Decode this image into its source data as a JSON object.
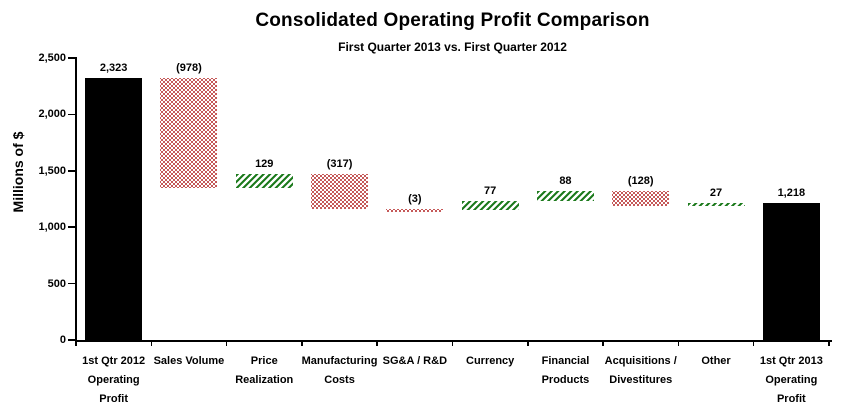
{
  "chart_data": {
    "type": "bar",
    "subtype": "waterfall",
    "title": "Consolidated Operating Profit Comparison",
    "subtitle": "First Quarter 2013 vs. First Quarter 2012",
    "ylabel": "Millions of $",
    "ylim": [
      0,
      2500
    ],
    "grid": false,
    "legend": false,
    "yticks": [
      {
        "value": 0,
        "label": "0"
      },
      {
        "value": 500,
        "label": "500"
      },
      {
        "value": 1000,
        "label": "1,000"
      },
      {
        "value": 1500,
        "label": "1,500"
      },
      {
        "value": 2000,
        "label": "2,000"
      },
      {
        "value": 2500,
        "label": "2,500"
      }
    ],
    "colors": {
      "total": "#000000",
      "increase": "#1e7b1e",
      "decrease": "#b22222",
      "background": "#ffffff"
    },
    "steps": [
      {
        "category": "1st Qtr 2012 Operating Profit",
        "category_lines": [
          "1st Qtr 2012",
          "Operating",
          "Profit"
        ],
        "value": 2323,
        "display": "2,323",
        "kind": "total",
        "pattern": "solid-black",
        "start": 0,
        "end": 2323
      },
      {
        "category": "Sales Volume",
        "category_lines": [
          "Sales Volume"
        ],
        "value": -978,
        "display": "(978)",
        "kind": "decrease",
        "pattern": "red-dots",
        "start": 2323,
        "end": 1345
      },
      {
        "category": "Price Realization",
        "category_lines": [
          "Price",
          "Realization"
        ],
        "value": 129,
        "display": "129",
        "kind": "increase",
        "pattern": "green-hatch",
        "start": 1345,
        "end": 1474
      },
      {
        "category": "Manufacturing Costs",
        "category_lines": [
          "Manufacturing",
          "Costs"
        ],
        "value": -317,
        "display": "(317)",
        "kind": "decrease",
        "pattern": "red-dots",
        "start": 1474,
        "end": 1157
      },
      {
        "category": "SG&A / R&D",
        "category_lines": [
          "SG&A / R&D"
        ],
        "value": -3,
        "display": "(3)",
        "kind": "decrease",
        "pattern": "red-dots",
        "start": 1157,
        "end": 1154
      },
      {
        "category": "Currency",
        "category_lines": [
          "Currency"
        ],
        "value": 77,
        "display": "77",
        "kind": "increase",
        "pattern": "green-hatch",
        "start": 1154,
        "end": 1231
      },
      {
        "category": "Financial Products",
        "category_lines": [
          "Financial",
          "Products"
        ],
        "value": 88,
        "display": "88",
        "kind": "increase",
        "pattern": "green-hatch",
        "start": 1231,
        "end": 1319
      },
      {
        "category": "Acquisitions / Divestitures",
        "category_lines": [
          "Acquisitions /",
          "Divestitures"
        ],
        "value": -128,
        "display": "(128)",
        "kind": "decrease",
        "pattern": "red-dots",
        "start": 1319,
        "end": 1191
      },
      {
        "category": "Other",
        "category_lines": [
          "Other"
        ],
        "value": 27,
        "display": "27",
        "kind": "increase",
        "pattern": "green-hatch",
        "start": 1191,
        "end": 1218
      },
      {
        "category": "1st Qtr 2013 Operating Profit",
        "category_lines": [
          "1st Qtr 2013",
          "Operating",
          "Profit"
        ],
        "value": 1218,
        "display": "1,218",
        "kind": "total",
        "pattern": "solid-black",
        "start": 0,
        "end": 1218
      }
    ]
  }
}
